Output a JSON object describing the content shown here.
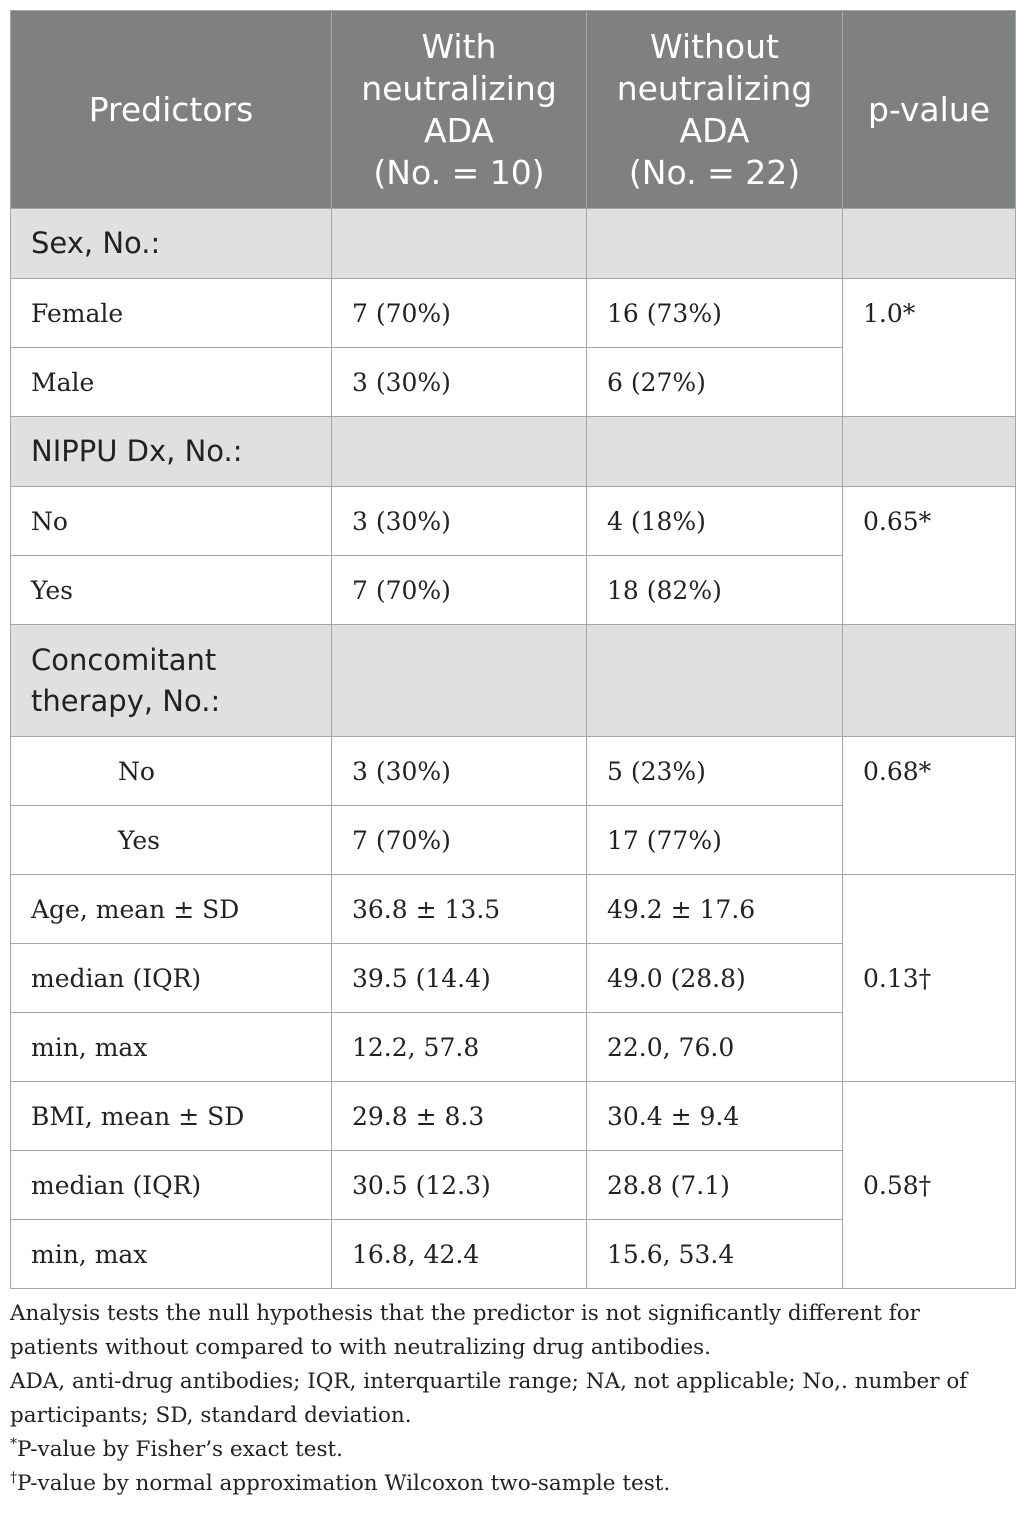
{
  "header": {
    "predictors": "Predictors",
    "with_line1": "With",
    "with_line2": "neutralizing",
    "with_line3": "ADA",
    "with_line4": "(No. = 10)",
    "without_line1": "Without",
    "without_line2": "neutralizing",
    "without_line3": "ADA",
    "without_line4": "(No. = 22)",
    "pvalue": "p-value"
  },
  "sections": {
    "sex": "Sex, No.:",
    "nippu": "NIPPU Dx, No.:",
    "concomitant_line1": "Concomitant",
    "concomitant_line2": "therapy, No.:"
  },
  "rows": {
    "female": {
      "label": "Female",
      "with": "7 (70%)",
      "without": "16 (73%)"
    },
    "male": {
      "label": "Male",
      "with": "3 (30%)",
      "without": "6 (27%)"
    },
    "nippu_no": {
      "label": "No",
      "with": "3 (30%)",
      "without": "4 (18%)"
    },
    "nippu_yes": {
      "label": "Yes",
      "with": "7 (70%)",
      "without": "18 (82%)"
    },
    "conc_no": {
      "label": "No",
      "with": "3 (30%)",
      "without": "5 (23%)"
    },
    "conc_yes": {
      "label": "Yes",
      "with": "7 (70%)",
      "without": "17 (77%)"
    },
    "age_mean": {
      "label": "Age, mean ± SD",
      "with": "36.8 ± 13.5",
      "without": "49.2 ± 17.6"
    },
    "age_median": {
      "label": "median (IQR)",
      "with": "39.5 (14.4)",
      "without": "49.0 (28.8)"
    },
    "age_minmax": {
      "label": "min, max",
      "with": "12.2, 57.8",
      "without": "22.0, 76.0"
    },
    "bmi_mean": {
      "label": "BMI, mean ± SD",
      "with": "29.8 ± 8.3",
      "without": "30.4 ± 9.4"
    },
    "bmi_median": {
      "label": "median (IQR)",
      "with": "30.5 (12.3)",
      "without": "28.8 (7.1)"
    },
    "bmi_minmax": {
      "label": "min, max",
      "with": "16.8, 42.4",
      "without": "15.6, 53.4"
    }
  },
  "pvalues": {
    "sex": "1.0*",
    "nippu": "0.65*",
    "concomitant": "0.68*",
    "age": "0.13†",
    "bmi": "0.58†"
  },
  "footnotes": {
    "line1": "Analysis tests the null hypothesis that the predictor is not significantly different for patients without compared to with neutralizing drug antibodies.",
    "line2": "ADA, anti-drug antibodies; IQR, interquartile range; NA, not applicable; No,. number of participants; SD, standard deviation.",
    "star_mark": "*",
    "line3": "P-value by Fisher’s exact test.",
    "dagger_mark": "†",
    "line4": "P-value by normal approximation Wilcoxon two-sample test."
  }
}
